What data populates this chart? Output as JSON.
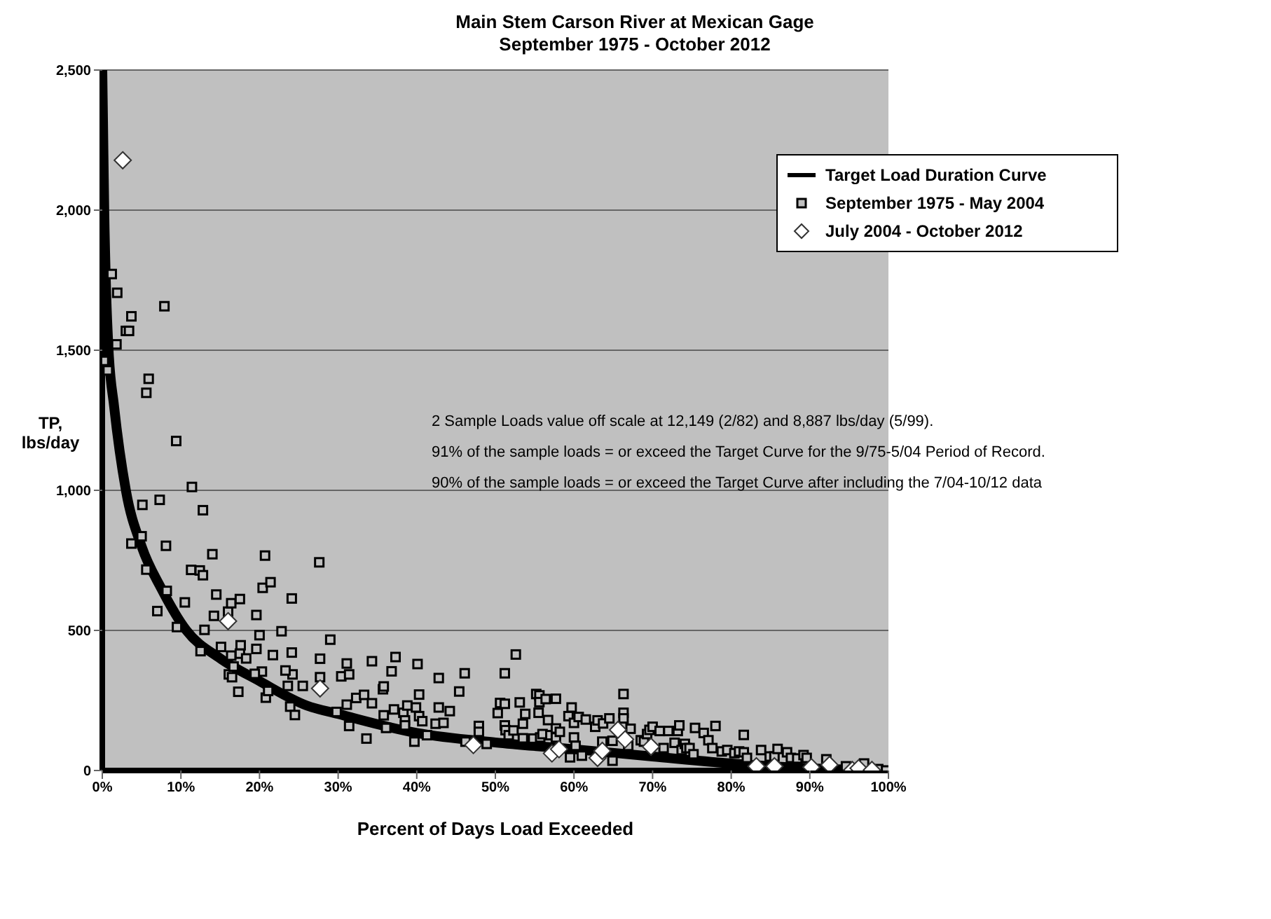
{
  "chart_data": {
    "type": "scatter",
    "title": "Main Stem Carson River at Mexican Gage",
    "subtitle": "September 1975 - October 2012",
    "xlabel": "Percent of Days Load Exceeded",
    "ylabel": "TP, lbs/day",
    "xlim": [
      0,
      100
    ],
    "xticks": [
      {
        "value": 0,
        "label": "0%"
      },
      {
        "value": 10,
        "label": "10%"
      },
      {
        "value": 20,
        "label": "20%"
      },
      {
        "value": 30,
        "label": "30%"
      },
      {
        "value": 40,
        "label": "40%"
      },
      {
        "value": 50,
        "label": "50%"
      },
      {
        "value": 60,
        "label": "60%"
      },
      {
        "value": 70,
        "label": "70%"
      },
      {
        "value": 80,
        "label": "80%"
      },
      {
        "value": 90,
        "label": "90%"
      },
      {
        "value": 100,
        "label": "100%"
      }
    ],
    "ylim": [
      0,
      2500
    ],
    "yticks": [
      0,
      500,
      {
        "value": 1000,
        "label": "1,000"
      },
      {
        "value": 1500,
        "label": "1,500"
      },
      {
        "value": 2000,
        "label": "2,000"
      },
      {
        "value": 2500,
        "label": "2,500"
      }
    ],
    "grid": "y",
    "legend": "top right",
    "annotations": [
      "2 Sample Loads value off scale at 12,149 (2/82) and 8,887 lbs/day (5/99).",
      "91% of the sample loads = or exceed the Target Curve for the 9/75-5/04 Period of Record.",
      "90% of the sample loads = or exceed the Target Curve after including the 7/04-10/12 data"
    ],
    "series": [
      {
        "name": "Target Load Duration Curve",
        "type": "line",
        "marker": "none",
        "color": "#000000",
        "x": [
          0,
          0.1,
          0.25,
          0.5,
          0.8,
          1.5,
          3,
          5,
          7.5,
          10.7,
          15,
          20,
          26,
          30,
          40,
          50,
          60,
          70,
          80,
          90,
          100
        ],
        "values": [
          2500,
          2300,
          2000,
          1700,
          1500,
          1300,
          1000,
          800,
          650,
          500,
          400,
          319,
          232,
          202,
          134,
          100,
          76,
          50,
          25,
          8,
          0
        ]
      },
      {
        "name": "September 1975 - May 2004",
        "marker": "square",
        "color": "#000000",
        "x": [
          1.2,
          1.9,
          1.8,
          0.2,
          0.7,
          3.0,
          3.4,
          3.7,
          7.9,
          5.9,
          5.6,
          9.4,
          11.4,
          12.8,
          7.3,
          5.1,
          3.7,
          8.1,
          5.0,
          5.6,
          11.3,
          12.4,
          12.8,
          14.0,
          7.0,
          8.2,
          10.5,
          9.5,
          14.5,
          13.0,
          12.5,
          14.2,
          15.1,
          16.0,
          16.4,
          17.5,
          16.4,
          16.1,
          16.5,
          16.7,
          17.6,
          17.5,
          18.3,
          17.3,
          19.6,
          19.6,
          20.0,
          20.4,
          20.7,
          21.4,
          20.3,
          19.4,
          20.8,
          21.1,
          21.7,
          22.8,
          24.1,
          24.1,
          24.2,
          23.3,
          23.6,
          25.5,
          23.9,
          24.5,
          27.6,
          29.0,
          27.7,
          27.7,
          29.8,
          30.4,
          31.1,
          31.4,
          31.1,
          31.4,
          32.3,
          33.3,
          34.3,
          34.3,
          33.6,
          35.7,
          35.8,
          35.8,
          36.1,
          36.8,
          37.1,
          37.3,
          38.3,
          38.8,
          38.5,
          38.5,
          39.9,
          40.1,
          40.3,
          40.3,
          40.7,
          39.7,
          41.3,
          42.4,
          42.8,
          42.8,
          43.4,
          44.2,
          45.4,
          46.1,
          46.2,
          47.9,
          47.9,
          48.9,
          50.3,
          50.6,
          51.2,
          51.2,
          51.2,
          51.3,
          51.7,
          52.3,
          52.6,
          53.1,
          53.5,
          53.5,
          53.8,
          54.8,
          55.2,
          55.6,
          55.6,
          55.5,
          55.7,
          56.0,
          56.4,
          56.7,
          57.7,
          57.0,
          57.7,
          57.7,
          58.2,
          59.7,
          59.3,
          60.0,
          60.6,
          61.5,
          60.0,
          60.2,
          59.5,
          61.0,
          62.7,
          63.0,
          63.7,
          64.5,
          63.6,
          64.9,
          64.9,
          66.3,
          66.3,
          66.3,
          67.2,
          66.9,
          68.5,
          68.9,
          69.3,
          69.6,
          70.0,
          70.9,
          71.4,
          72.0,
          72.8,
          73.2,
          73.4,
          73.7,
          74.1,
          74.3,
          74.7,
          75.2,
          75.4,
          76.5,
          77.1,
          77.6,
          78.0,
          78.8,
          79.5,
          80.4,
          81.0,
          81.6,
          81.6,
          82.0,
          83.8,
          84.9,
          85.5,
          85.9,
          87.1,
          87.6,
          88.4,
          89.2,
          89.6,
          92.1,
          94.6,
          96.9,
          98.7,
          99.7
        ],
        "values": [
          1772,
          1705,
          1521,
          1462,
          1428,
          1569,
          1569,
          1621,
          1657,
          1398,
          1348,
          1176,
          1012,
          929,
          966,
          948,
          810,
          802,
          836,
          717,
          716,
          714,
          697,
          772,
          569,
          641,
          600,
          512,
          628,
          502,
          426,
          552,
          441,
          567,
          597,
          612,
          410,
          343,
          333,
          371,
          447,
          417,
          400,
          281,
          555,
          434,
          483,
          652,
          767,
          672,
          353,
          345,
          260,
          284,
          412,
          497,
          614,
          421,
          343,
          357,
          302,
          302,
          228,
          198,
          743,
          467,
          399,
          333,
          209,
          336,
          382,
          343,
          235,
          159,
          259,
          270,
          390,
          240,
          114,
          290,
          300,
          197,
          152,
          354,
          218,
          405,
          206,
          232,
          179,
          161,
          225,
          380,
          271,
          194,
          176,
          103,
          126,
          167,
          330,
          225,
          170,
          212,
          282,
          347,
          103,
          159,
          138,
          95,
          205,
          241,
          238,
          347,
          161,
          144,
          126,
          143,
          414,
          243,
          167,
          115,
          202,
          114,
          273,
          268,
          244,
          206,
          118,
          130,
          255,
          180,
          256,
          126,
          150,
          118,
          138,
          225,
          194,
          170,
          191,
          182,
          118,
          88,
          47,
          53,
          156,
          179,
          168,
          186,
          103,
          106,
          35,
          273,
          206,
          186,
          149,
          88,
          108,
          103,
          130,
          145,
          156,
          141,
          80,
          141,
          99,
          141,
          161,
          73,
          95,
          80,
          80,
          58,
          152,
          134,
          108,
          80,
          159,
          68,
          73,
          62,
          68,
          127,
          65,
          45,
          73,
          50,
          50,
          77,
          65,
          45,
          43,
          55,
          45,
          40,
          15,
          25,
          5,
          0
        ]
      },
      {
        "name": "July 2004 - October 2012",
        "marker": "diamond",
        "color": "#ffffff",
        "x": [
          2.6,
          16.0,
          27.7,
          47.2,
          57.2,
          58.1,
          63.0,
          63.6,
          65.6,
          66.5,
          69.8,
          83.2,
          85.5,
          90.2,
          92.5,
          95.4,
          96.2,
          97.9
        ],
        "values": [
          2178,
          533,
          293,
          91,
          61,
          76,
          45,
          70,
          145,
          111,
          85,
          15,
          15,
          12,
          20,
          2,
          8,
          2
        ]
      }
    ]
  }
}
